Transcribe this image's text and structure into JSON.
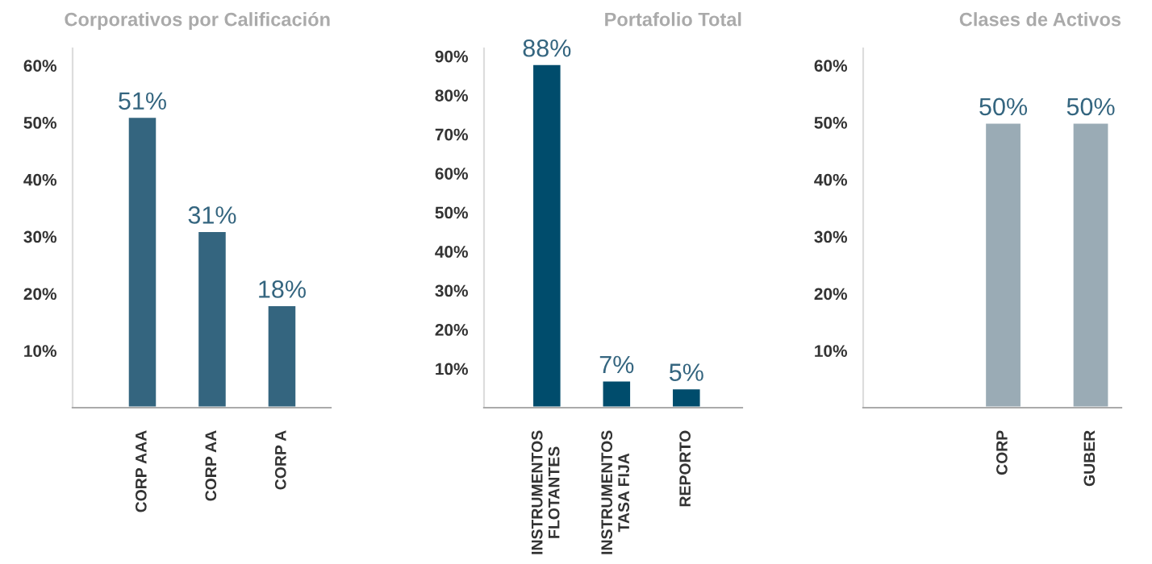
{
  "chart_data": [
    {
      "type": "bar",
      "title": "Corporativos por Calificación",
      "categories": [
        "CORP AAA",
        "CORP AA",
        "CORP A"
      ],
      "values": [
        51,
        31,
        18
      ],
      "value_labels": [
        "51%",
        "31%",
        "18%"
      ],
      "color": "#34657f",
      "ylim": [
        0,
        63
      ],
      "yticks": [
        {
          "value": 10,
          "label": "10%"
        },
        {
          "value": 20,
          "label": "20%"
        },
        {
          "value": 30,
          "label": "30%"
        },
        {
          "value": 40,
          "label": "40%"
        },
        {
          "value": 50,
          "label": "50%"
        },
        {
          "value": 60,
          "label": "60%"
        }
      ],
      "grid": false,
      "legend": false
    },
    {
      "type": "bar",
      "title": "Portafolio Total",
      "categories": [
        "INSTRUMENTOS\nFLOTANTES",
        "INSTRUMENTOS\nTASA FIJA",
        "REPORTO"
      ],
      "values": [
        88,
        7,
        5
      ],
      "value_labels": [
        "88%",
        "7%",
        "5%"
      ],
      "color": "#004c6c",
      "ylim": [
        0,
        92
      ],
      "yticks": [
        {
          "value": 10,
          "label": "10%"
        },
        {
          "value": 20,
          "label": "20%"
        },
        {
          "value": 30,
          "label": "30%"
        },
        {
          "value": 40,
          "label": "40%"
        },
        {
          "value": 50,
          "label": "50%"
        },
        {
          "value": 60,
          "label": "60%"
        },
        {
          "value": 70,
          "label": "70%"
        },
        {
          "value": 80,
          "label": "80%"
        },
        {
          "value": 90,
          "label": "90%"
        }
      ],
      "grid": false,
      "legend": false
    },
    {
      "type": "bar",
      "title": "Clases de Activos",
      "categories": [
        "CORP",
        "GUBER"
      ],
      "values": [
        50,
        50
      ],
      "value_labels": [
        "50%",
        "50%"
      ],
      "color": "#9aabb5",
      "ylim": [
        0,
        63
      ],
      "yticks": [
        {
          "value": 10,
          "label": "10%"
        },
        {
          "value": 20,
          "label": "20%"
        },
        {
          "value": 30,
          "label": "30%"
        },
        {
          "value": 40,
          "label": "40%"
        },
        {
          "value": 50,
          "label": "50%"
        },
        {
          "value": 60,
          "label": "60%"
        }
      ],
      "grid": false,
      "legend": false
    }
  ]
}
